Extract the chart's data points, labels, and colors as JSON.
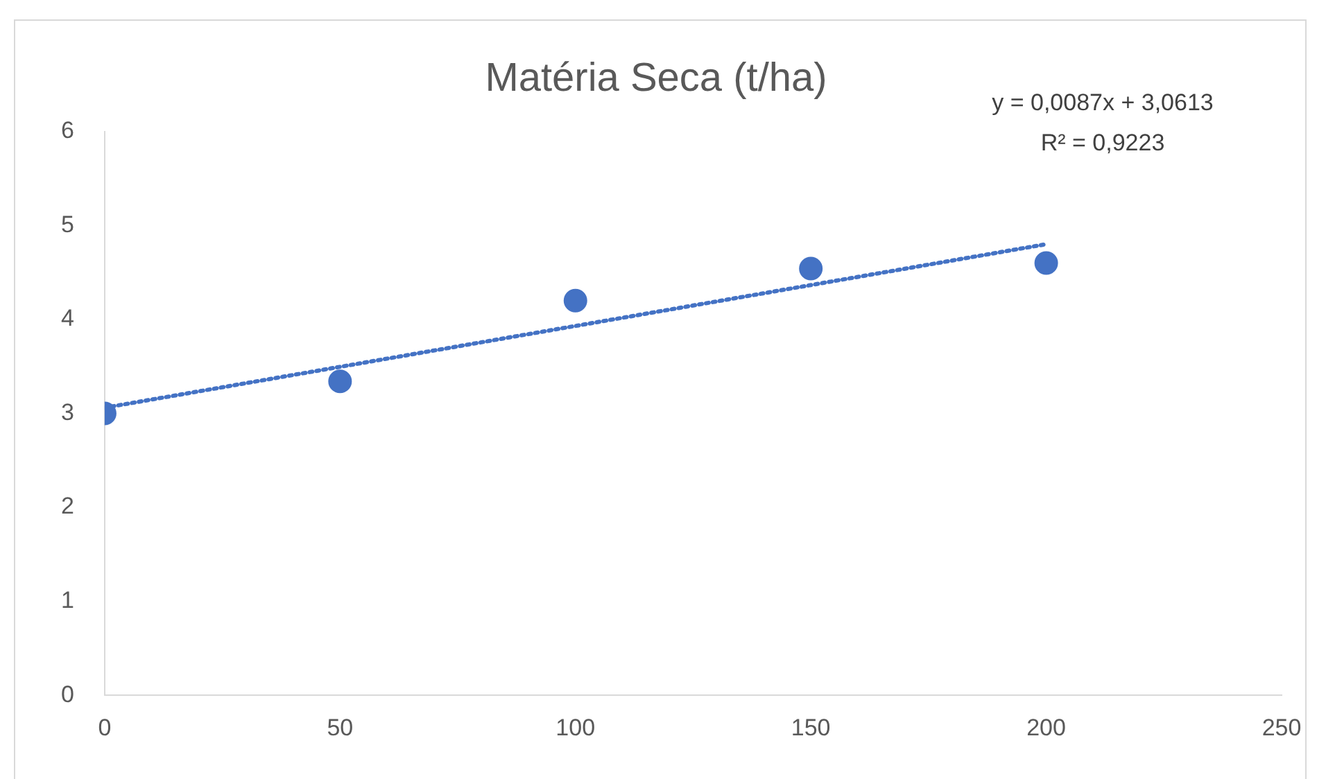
{
  "chart_data": {
    "type": "scatter",
    "title": "Matéria Seca (t/ha)",
    "xlim": [
      0,
      250
    ],
    "xticks": [
      0,
      50,
      100,
      150,
      200,
      250
    ],
    "ylim": [
      0,
      6
    ],
    "yticks": [
      0,
      1,
      2,
      3,
      4,
      5,
      6
    ],
    "grid": false,
    "legend": false,
    "marker": "circle",
    "series": [
      {
        "color": "#4472c4",
        "x": [
          0,
          50,
          100,
          150,
          200
        ],
        "values": [
          3.0,
          3.34,
          4.2,
          4.54,
          4.6
        ]
      },
      {
        "type": "line",
        "color": "#4472c4",
        "line_style": "dotted",
        "marker": "none",
        "x": [
          0,
          200
        ],
        "values": [
          3.06,
          4.8
        ]
      }
    ],
    "annotations": [
      "y = 0,0087x + 3,0613",
      "R² = 0,9223"
    ]
  }
}
